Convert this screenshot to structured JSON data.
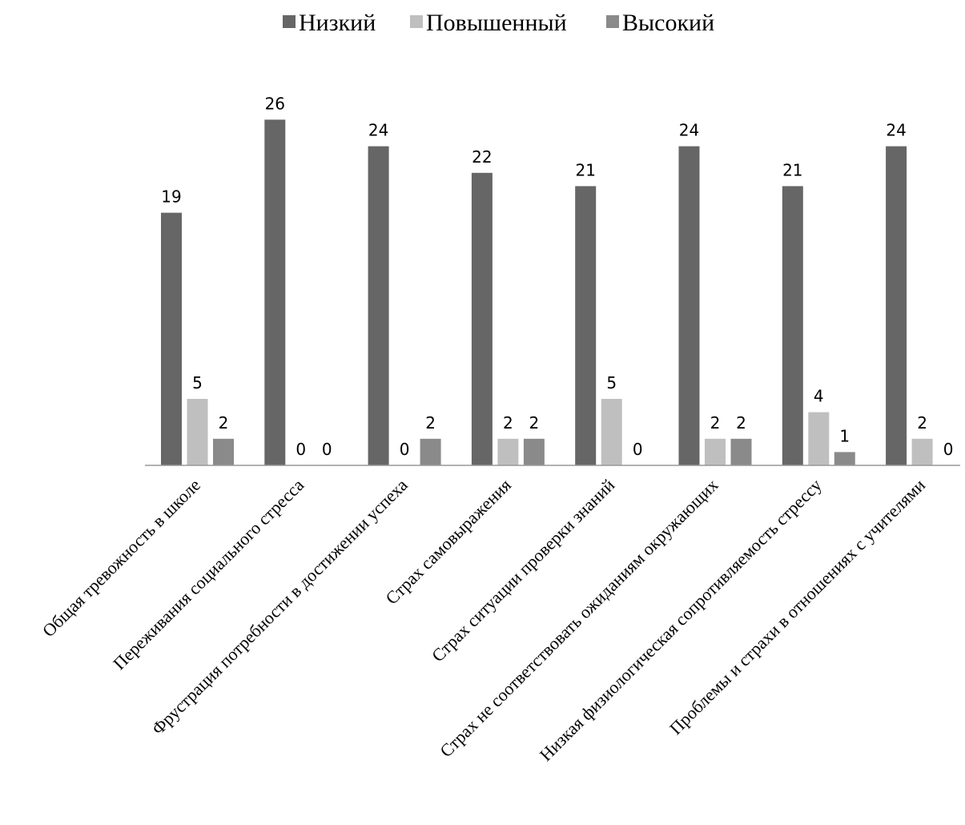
{
  "chart_data": {
    "type": "bar",
    "title": "",
    "xlabel": "",
    "ylabel": "",
    "ylim": [
      0,
      26
    ],
    "grid": false,
    "legend_position": "top",
    "categories": [
      "Общая тревожность в школе",
      "Переживания социального стресса",
      "Фрустрация потребности в достижении успеха",
      "Страх самовыражения",
      "Страх ситуации проверки знаний",
      "Страх не соответствовать ожиданиям окружающих",
      "Низкая физиологическая сопротивляемость стрессу",
      "Проблемы и страхи в отношениях с учителями"
    ],
    "series": [
      {
        "name": "Низкий",
        "color": "#666666",
        "values": [
          19,
          26,
          24,
          22,
          21,
          24,
          21,
          24
        ]
      },
      {
        "name": "Повышенный",
        "color": "#bfbfbf",
        "values": [
          5,
          0,
          0,
          2,
          5,
          2,
          4,
          2
        ]
      },
      {
        "name": "Высокий",
        "color": "#8a8a8a",
        "values": [
          2,
          0,
          2,
          2,
          0,
          2,
          1,
          0
        ]
      }
    ]
  }
}
